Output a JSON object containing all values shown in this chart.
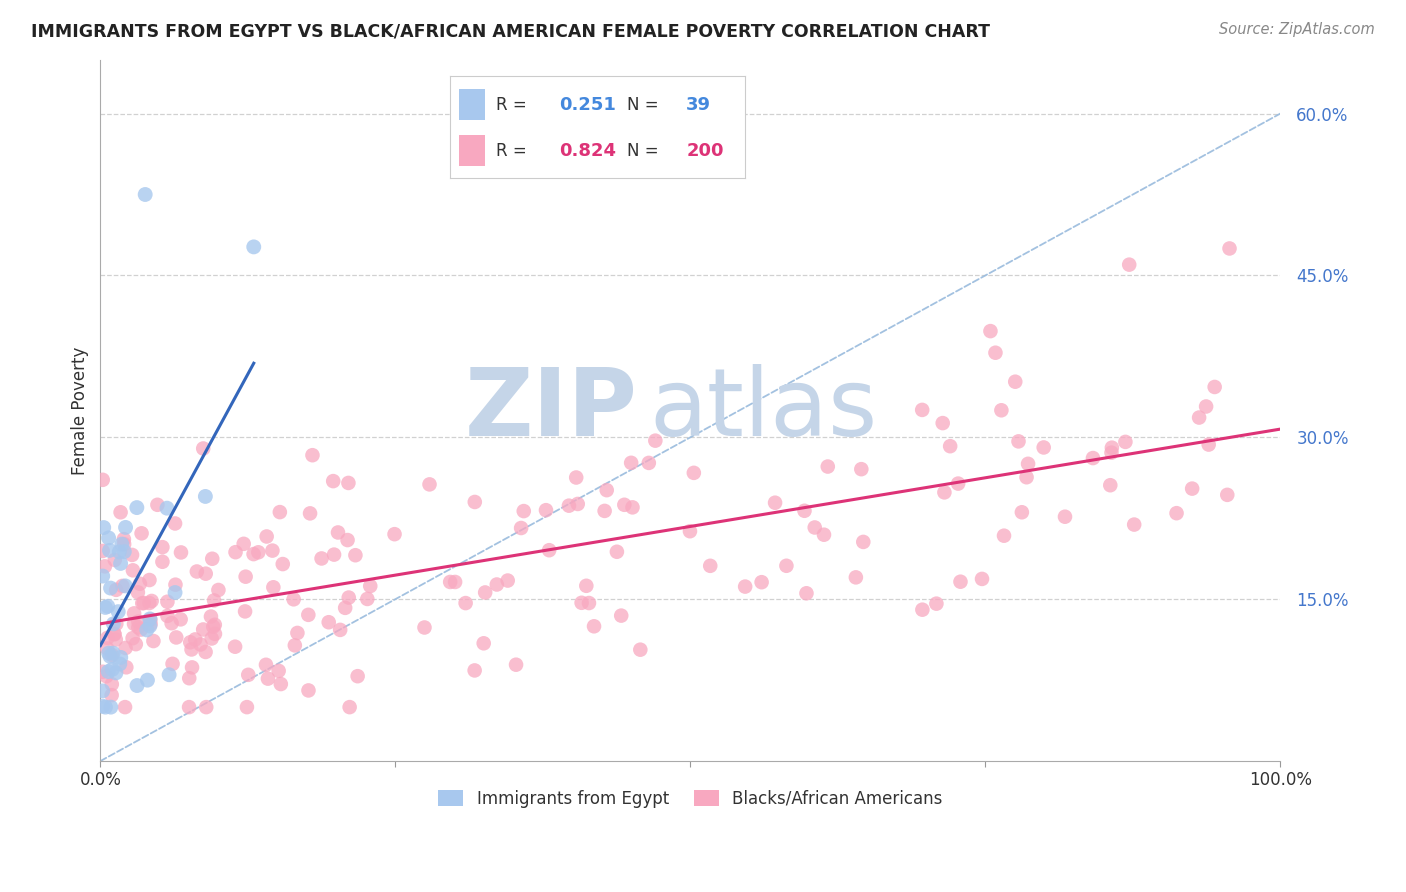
{
  "title": "IMMIGRANTS FROM EGYPT VS BLACK/AFRICAN AMERICAN FEMALE POVERTY CORRELATION CHART",
  "source": "Source: ZipAtlas.com",
  "ylabel": "Female Poverty",
  "xlim": [
    0.0,
    1.0
  ],
  "ylim": [
    0.0,
    0.65
  ],
  "blue_R": 0.251,
  "blue_N": 39,
  "pink_R": 0.824,
  "pink_N": 200,
  "legend_label_blue": "Immigrants from Egypt",
  "legend_label_pink": "Blacks/African Americans",
  "blue_color": "#a8c8ee",
  "pink_color": "#f8a8c0",
  "blue_line_color": "#3366bb",
  "pink_line_color": "#dd3377",
  "diag_line_color": "#99bbdd",
  "watermark_zip_color": "#c5d5e8",
  "watermark_atlas_color": "#c5d5e8",
  "ytick_color": "#4477cc",
  "grid_color": "#cccccc",
  "title_color": "#222222",
  "source_color": "#888888"
}
